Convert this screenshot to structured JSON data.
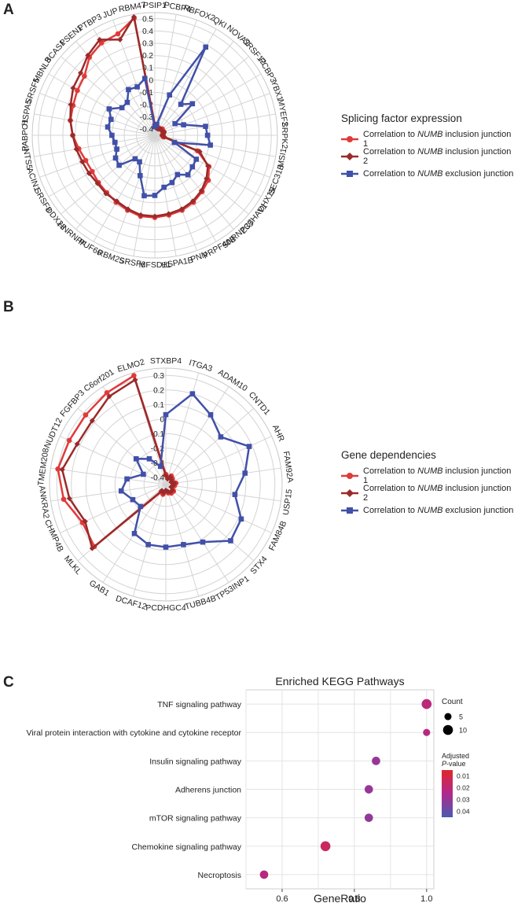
{
  "panels": {
    "a": {
      "label": "A",
      "legend_title": "Splicing factor expression",
      "legend_items": [
        {
          "pre": "Correlation to ",
          "it": "NUMB",
          "post": " inclusion junction 1",
          "color": "#e03a3a",
          "marker": "circle"
        },
        {
          "pre": "Correlation to ",
          "it": "NUMB",
          "post": " inclusion junction 2",
          "color": "#9b2a2a",
          "marker": "diamond"
        },
        {
          "pre": "Correlation to ",
          "it": "NUMB",
          "post": " exclusion junction",
          "color": "#4150a8",
          "marker": "square"
        }
      ]
    },
    "b": {
      "label": "B",
      "legend_title": "Gene dependencies",
      "legend_items": [
        {
          "pre": "Correlation to ",
          "it": "NUMB",
          "post": " inclusion junction 1",
          "color": "#e03a3a",
          "marker": "circle"
        },
        {
          "pre": "Correlation to ",
          "it": "NUMB",
          "post": " inclusion junction 2",
          "color": "#9b2a2a",
          "marker": "diamond"
        },
        {
          "pre": "Correlation to ",
          "it": "NUMB",
          "post": " exclusion junction",
          "color": "#4150a8",
          "marker": "square"
        }
      ]
    },
    "c": {
      "label": "C"
    }
  },
  "chart_data": [
    {
      "type": "radar",
      "rlim": [
        -0.45,
        0.55
      ],
      "ticks": [
        "0.5",
        "0.4",
        "0.3",
        "0.2",
        "0.1",
        "0",
        "-0.1",
        "-0.2",
        "-0.3",
        "-0.4"
      ],
      "tick_values": [
        0.5,
        0.4,
        0.3,
        0.2,
        0.1,
        0,
        -0.1,
        -0.2,
        -0.3,
        -0.4
      ],
      "categories": [
        "PSIP1",
        "PCBP4",
        "RBFOX2",
        "QKI",
        "NOVA2",
        "SRSF12",
        "PCBP3",
        "YBX1",
        "MYEF2",
        "SRPK2",
        "MSI1",
        "SEC31B",
        "DHX15",
        "ZC3HAV1",
        "SNRNP35",
        "PRPF40B",
        "PNN",
        "HSPA1B",
        "MFSD11",
        "SRSF6",
        "RBM25",
        "PUF60",
        "HNRNPF",
        "DDX23",
        "SRSF8",
        "ACIN1",
        "INTS5",
        "PABPC1",
        "HSPA5",
        "SRSF5",
        "MBNL3",
        "BCAS1",
        "PSEN1",
        "PTBP3",
        "JUP",
        "RBM47"
      ],
      "series": [
        {
          "name": "Correlation to NUMB inclusion junction 1",
          "color": "#e03a3a",
          "marker": "circle",
          "values": [
            -0.36,
            -0.38,
            -0.38,
            -0.39,
            -0.38,
            -0.37,
            -0.38,
            -0.37,
            -0.38,
            -0.39,
            -0.38,
            -0.08,
            0.06,
            0.12,
            0.15,
            0.18,
            0.2,
            0.21,
            0.22,
            0.22,
            0.2,
            0.18,
            0.16,
            0.15,
            0.14,
            0.15,
            0.18,
            0.22,
            0.25,
            0.26,
            0.28,
            0.3,
            0.38,
            0.42,
            0.43,
            0.52
          ]
        },
        {
          "name": "Correlation to NUMB inclusion junction 2",
          "color": "#9b2a2a",
          "marker": "diamond",
          "values": [
            -0.37,
            -0.39,
            -0.39,
            -0.39,
            -0.38,
            -0.38,
            -0.38,
            -0.37,
            -0.38,
            -0.39,
            -0.37,
            -0.06,
            0.05,
            0.1,
            0.14,
            0.17,
            0.19,
            0.2,
            0.21,
            0.21,
            0.19,
            0.17,
            0.17,
            0.16,
            0.17,
            0.18,
            0.2,
            0.22,
            0.25,
            0.28,
            0.32,
            0.34,
            0.4,
            0.45,
            0.38,
            0.53
          ]
        },
        {
          "name": "Correlation to NUMB exclusion junction",
          "color": "#4150a8",
          "marker": "square",
          "values": [
            -0.38,
            -0.36,
            -0.1,
            0.38,
            -0.12,
            -0.05,
            -0.26,
            -0.2,
            -0.03,
            -0.02,
            0.01,
            -0.28,
            -0.06,
            -0.05,
            -0.03,
            -0.08,
            -0.04,
            -0.02,
            0.04,
            0.05,
            -0.1,
            -0.2,
            -0.2,
            -0.07,
            -0.08,
            -0.12,
            -0.12,
            -0.1,
            -0.06,
            -0.07,
            -0.02,
            -0.1,
            -0.1,
            -0.02,
            -0.03,
            0.02
          ]
        }
      ]
    },
    {
      "type": "radar",
      "rlim": [
        -0.45,
        0.35
      ],
      "ticks": [
        "0.3",
        "0.2",
        "0.1",
        "0",
        "-0.1",
        "-0.2",
        "-0.3",
        "-0.4"
      ],
      "tick_values": [
        0.3,
        0.2,
        0.1,
        0,
        -0.1,
        -0.2,
        -0.3,
        -0.4
      ],
      "categories": [
        "STXBP4",
        "ITGA3",
        "ADAM10",
        "CNTD1",
        "AHR",
        "FAM92A",
        "USP15",
        "FAM84B",
        "STX4",
        "TP53INP1",
        "TUBB4B",
        "PCDHGC4",
        "DCAF12",
        "GAB1",
        "MLKL",
        "CHMP4B",
        "ANKRA2",
        "TMEM208",
        "NUDT12",
        "FGFBP3",
        "C6orf201",
        "ELMO2"
      ],
      "series": [
        {
          "name": "Correlation to NUMB inclusion junction 1",
          "color": "#e03a3a",
          "marker": "circle",
          "values": [
            -0.38,
            -0.4,
            -0.38,
            -0.39,
            -0.4,
            -0.38,
            -0.39,
            -0.4,
            -0.38,
            -0.38,
            -0.39,
            -0.4,
            -0.38,
            -0.39,
            0.2,
            0.18,
            0.26,
            0.3,
            0.28,
            0.28,
            0.3,
            0.33
          ]
        },
        {
          "name": "Correlation to NUMB inclusion junction 2",
          "color": "#9b2a2a",
          "marker": "diamond",
          "values": [
            -0.39,
            -0.41,
            -0.39,
            -0.4,
            -0.41,
            -0.39,
            -0.4,
            -0.41,
            -0.39,
            -0.39,
            -0.4,
            -0.41,
            -0.39,
            -0.4,
            0.22,
            0.16,
            0.22,
            0.27,
            0.22,
            0.22,
            0.27,
            0.3
          ]
        },
        {
          "name": "Correlation to NUMB exclusion junction",
          "color": "#4150a8",
          "marker": "square",
          "values": [
            0.03,
            0.2,
            0.12,
            0.05,
            0.18,
            0.1,
            0.03,
            0.12,
            0.14,
            0.02,
            -0.02,
            -0.02,
            -0.02,
            -0.05,
            -0.22,
            -0.2,
            -0.14,
            -0.18,
            -0.28,
            -0.18,
            -0.24,
            -0.32
          ]
        }
      ]
    },
    {
      "type": "scatter",
      "title": "Enriched KEGG Pathways",
      "xlabel": "GeneRatio",
      "ylabel": "",
      "xlim": [
        0.5,
        1.02
      ],
      "xticks": [
        0.6,
        0.8,
        1.0
      ],
      "xtick_labels": [
        "0.6",
        "0.8",
        "1.0"
      ],
      "grid": true,
      "categories": [
        "TNF signaling pathway",
        "Viral protein interaction with cytokine and cytokine receptor",
        "Insulin signaling pathway",
        "Adherens junction",
        "mTOR signaling pathway",
        "Chemokine signaling pathway",
        "Necroptosis"
      ],
      "x": [
        1.0,
        1.0,
        0.86,
        0.84,
        0.84,
        0.72,
        0.55
      ],
      "count": [
        10,
        5,
        7,
        7,
        7,
        10,
        7
      ],
      "padj": [
        0.021,
        0.022,
        0.03,
        0.03,
        0.031,
        0.015,
        0.022
      ],
      "legend": {
        "count_title": "Count",
        "count_labels": [
          "5",
          "10"
        ],
        "count_values": [
          5,
          10
        ],
        "padj_title_1": "Adjusted",
        "padj_title_2_italic": "P",
        "padj_title_2_rest": "-value",
        "padj_labels": [
          "0.01",
          "0.02",
          "0.03",
          "0.04"
        ],
        "padj_values": [
          0.01,
          0.02,
          0.03,
          0.04
        ],
        "padj_range": [
          0.005,
          0.045
        ],
        "color_low": "#e0262a",
        "color_mid": "#b02a8e",
        "color_high": "#4a5bb0"
      }
    }
  ]
}
